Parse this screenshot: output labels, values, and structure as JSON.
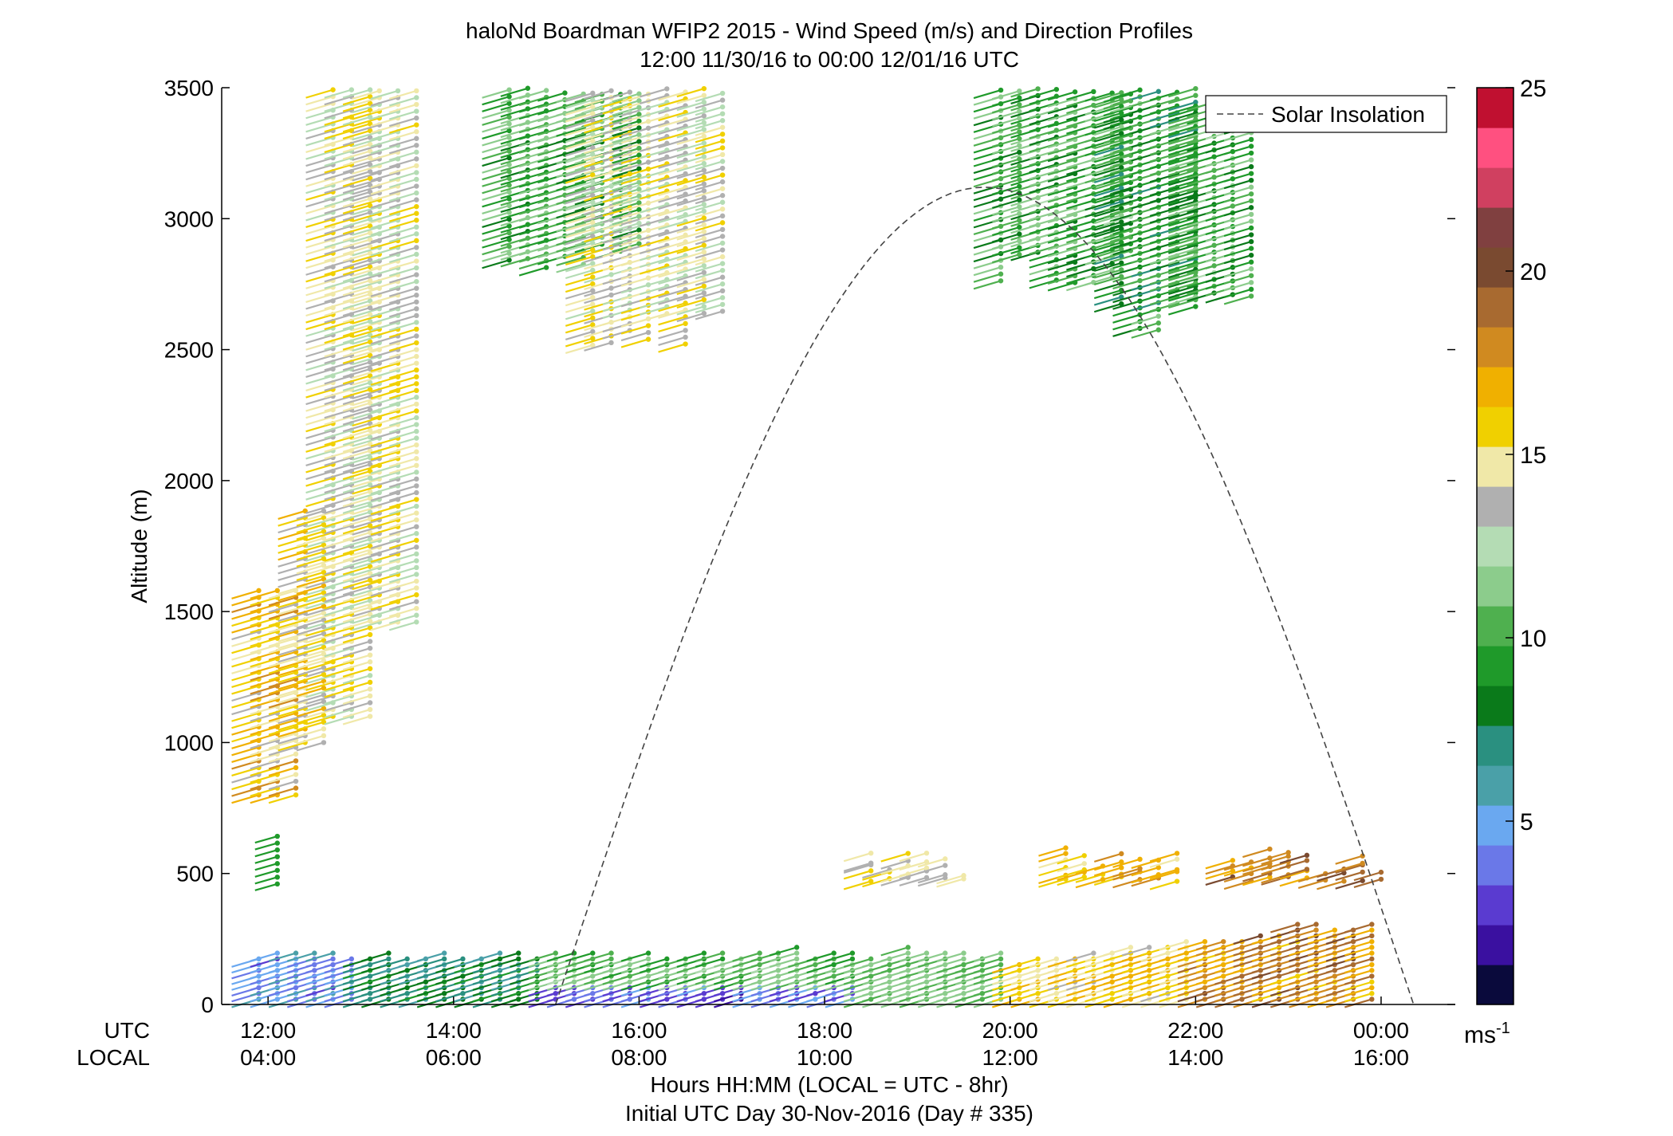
{
  "chart_data": {
    "type": "wind-barb-profile",
    "title": "haloNd Boardman WFIP2 2015 - Wind Speed (m/s) and Direction Profiles",
    "subtitle": "12:00 11/30/16 to 00:00 12/01/16  UTC",
    "ylabel": "Altitude (m)",
    "xlabel": "Hours HH:MM  (LOCAL = UTC - 8hr)",
    "xlabel2": "Initial UTC Day 30-Nov-2016 (Day # 335)",
    "row_label_utc": "UTC",
    "row_label_local": "LOCAL",
    "ylim": [
      0,
      3500
    ],
    "xlim_hours_utc": [
      11.5,
      24.8
    ],
    "y_ticks": [
      "0",
      "500",
      "1000",
      "1500",
      "2000",
      "2500",
      "3000",
      "3500"
    ],
    "x_ticks_utc": [
      "12:00",
      "14:00",
      "16:00",
      "18:00",
      "20:00",
      "22:00",
      "00:00"
    ],
    "x_ticks_local": [
      "04:00",
      "06:00",
      "08:00",
      "10:00",
      "12:00",
      "14:00",
      "16:00"
    ],
    "legend": {
      "label": "Solar Insolation",
      "placement": "top-right"
    },
    "solar_insolation": {
      "sunrise_utc_hours": 15.1,
      "sunset_utc_hours": 24.35,
      "peak_altitude_m": 3120
    },
    "colorbar": {
      "range": [
        0,
        25
      ],
      "ticks": [
        "5",
        "10",
        "15",
        "20",
        "25"
      ],
      "unit": "ms",
      "unit_exponent": "-1",
      "colors": [
        "#0a0a3c",
        "#3a10a0",
        "#5a3bd0",
        "#6a78e8",
        "#6aa8f0",
        "#4aa0a8",
        "#2a9080",
        "#0a7a1a",
        "#1f9a2a",
        "#4fb04f",
        "#8ccc8c",
        "#b4dcb4",
        "#b0b0b0",
        "#f0e8a8",
        "#f0d000",
        "#f0b000",
        "#d08a20",
        "#a86a30",
        "#7a4a30",
        "#804040",
        "#d04060",
        "#ff5080",
        "#c01030"
      ]
    }
  }
}
